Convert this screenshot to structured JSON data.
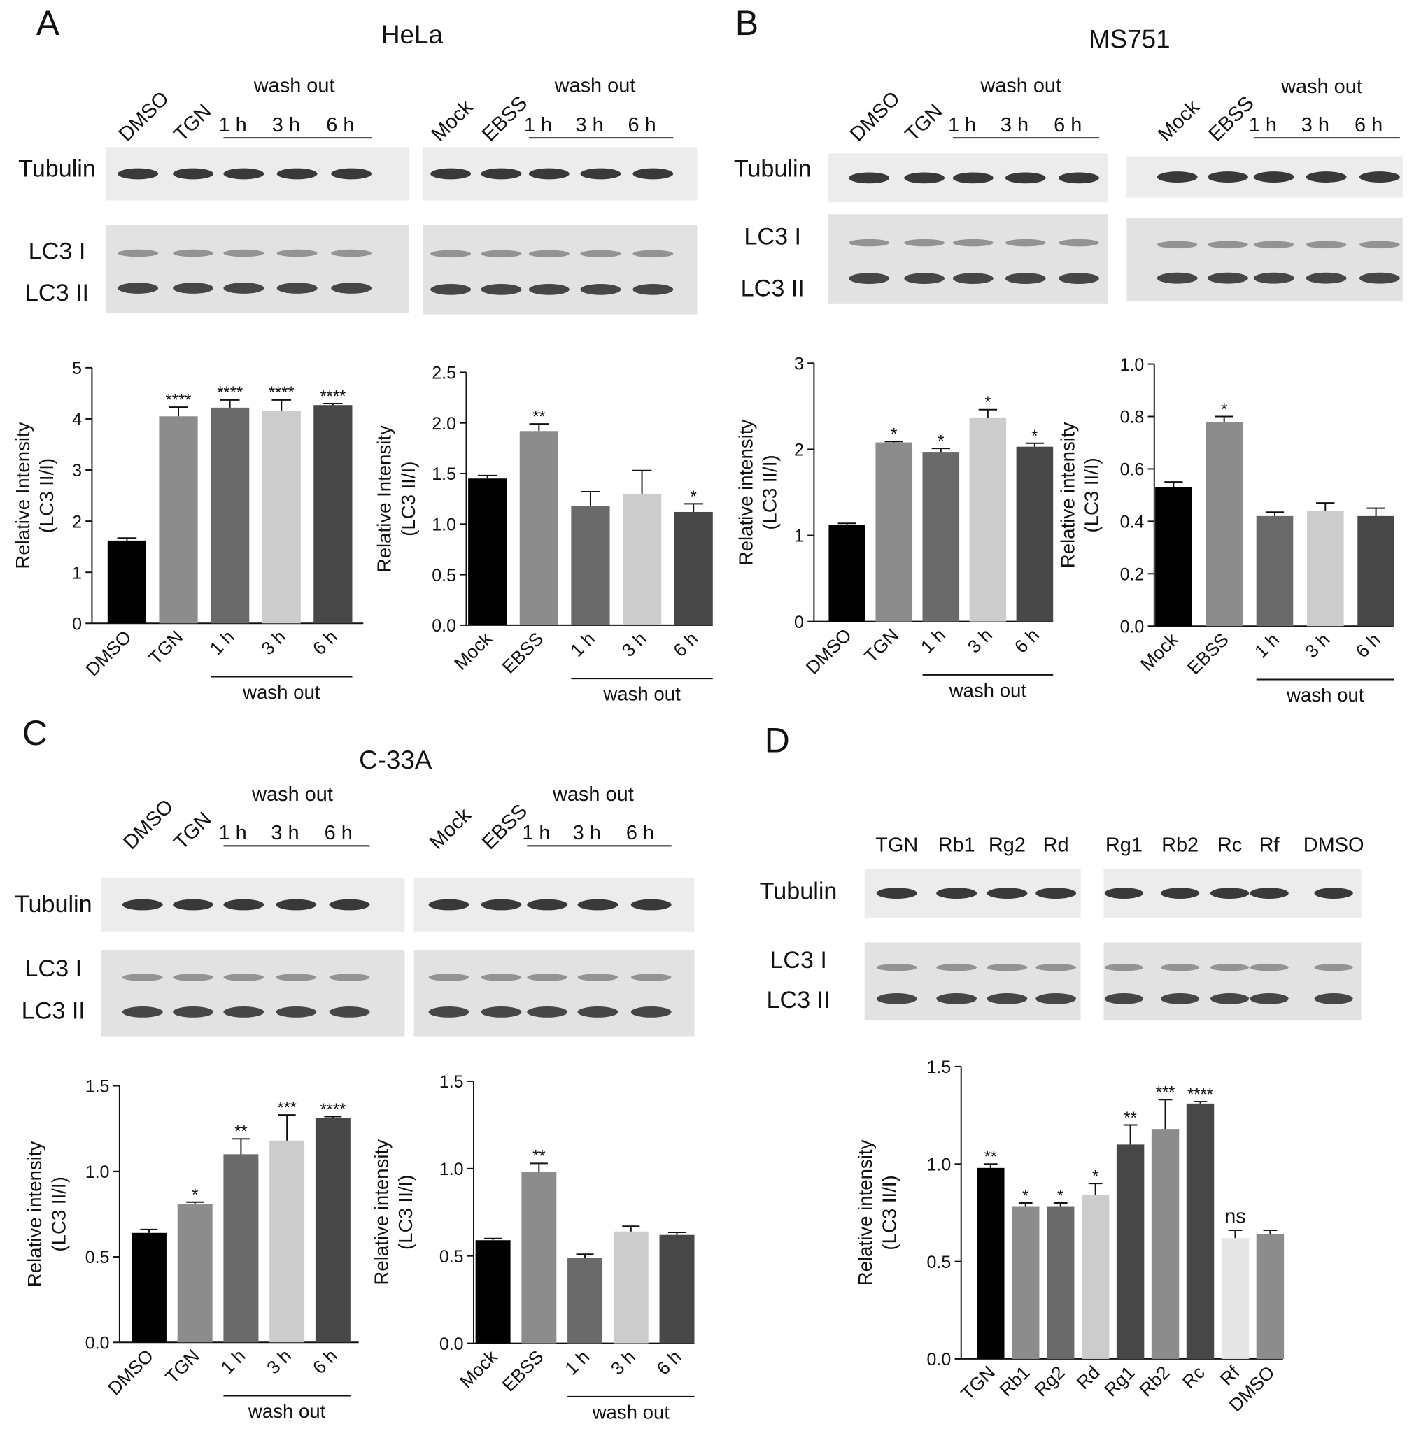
{
  "figure": {
    "panels": [
      {
        "letter": "A",
        "title": "HeLa",
        "blots": [
          {
            "header": "wash out",
            "lanes": [
              "DMSO",
              "TGN",
              "1 h",
              "3 h",
              "6 h"
            ],
            "rows": [
              "Tubulin",
              "LC3 I",
              "LC3 II"
            ]
          },
          {
            "header": "wash out",
            "lanes": [
              "Mock",
              "EBSS",
              "1 h",
              "3 h",
              "6 h"
            ]
          }
        ]
      },
      {
        "letter": "B",
        "title": "MS751",
        "blots": [
          {
            "header": "wash out",
            "lanes": [
              "DMSO",
              "TGN",
              "1 h",
              "3 h",
              "6 h"
            ],
            "rows": [
              "Tubulin",
              "LC3 I",
              "LC3 II"
            ]
          },
          {
            "header": "wash out",
            "lanes": [
              "Mock",
              "EBSS",
              "1 h",
              "3 h",
              "6 h"
            ]
          }
        ]
      },
      {
        "letter": "C",
        "title": "C-33A",
        "blots": [
          {
            "header": "wash out",
            "lanes": [
              "DMSO",
              "TGN",
              "1 h",
              "3 h",
              "6 h"
            ],
            "rows": [
              "Tubulin",
              "LC3 I",
              "LC3 II"
            ]
          },
          {
            "header": "wash out",
            "lanes": [
              "Mock",
              "EBSS",
              "1 h",
              "3 h",
              "6 h"
            ]
          }
        ]
      },
      {
        "letter": "D",
        "blots": [
          {
            "lanes": [
              "TGN",
              "Rb1",
              "Rg2",
              "Rd"
            ],
            "rows": [
              "Tubulin",
              "LC3 I",
              "LC3 II"
            ]
          },
          {
            "lanes": [
              "Rg1",
              "Rb2",
              "Rc",
              "Rf",
              "DMSO"
            ]
          }
        ]
      }
    ]
  },
  "chart_data": [
    {
      "type": "bar",
      "y_label": [
        "Relative Intensity",
        "(LC3 II/I)"
      ],
      "x_group_label": "wash out",
      "categories": [
        "DMSO",
        "TGN",
        "1 h",
        "3 h",
        "6 h"
      ],
      "values": [
        1.62,
        4.05,
        4.22,
        4.15,
        4.27
      ],
      "errors": [
        0.05,
        0.18,
        0.15,
        0.22,
        0.03
      ],
      "annotations": [
        null,
        "****",
        "****",
        "****",
        "****"
      ],
      "colors": [
        "#000000",
        "#8c8c8c",
        "#6a6a6a",
        "#cccccc",
        "#474747"
      ],
      "ylim": [
        0,
        5
      ],
      "yticks": [
        0,
        1,
        2,
        3,
        4,
        5
      ]
    },
    {
      "type": "bar",
      "y_label": [
        "Relative Intensity",
        "(LC3 II/I)"
      ],
      "x_group_label": "wash out",
      "categories": [
        "Mock",
        "EBSS",
        "1 h",
        "3 h",
        "6 h"
      ],
      "values": [
        1.45,
        1.92,
        1.18,
        1.3,
        1.12
      ],
      "errors": [
        0.03,
        0.07,
        0.14,
        0.23,
        0.08
      ],
      "annotations": [
        null,
        "**",
        null,
        null,
        "*"
      ],
      "colors": [
        "#000000",
        "#8c8c8c",
        "#6a6a6a",
        "#cccccc",
        "#474747"
      ],
      "ylim": [
        0,
        2.5
      ],
      "yticks": [
        {
          "value": 0,
          "label": "0.0"
        },
        0.5,
        {
          "value": 1,
          "label": "1.0"
        },
        1.5,
        {
          "value": 2,
          "label": "2.0"
        },
        2.5
      ]
    },
    {
      "type": "bar",
      "y_label": [
        "Relative intensity",
        "(LC3 II/I)"
      ],
      "x_group_label": "wash out",
      "categories": [
        "DMSO",
        "TGN",
        "1 h",
        "3 h",
        "6 h"
      ],
      "values": [
        1.12,
        2.08,
        1.97,
        2.37,
        2.03
      ],
      "errors": [
        0.02,
        0.01,
        0.04,
        0.09,
        0.04
      ],
      "annotations": [
        null,
        "*",
        "*",
        "*",
        "*"
      ],
      "colors": [
        "#000000",
        "#8c8c8c",
        "#6a6a6a",
        "#cccccc",
        "#474747"
      ],
      "ylim": [
        0,
        3
      ],
      "yticks": [
        0,
        1,
        2,
        3
      ]
    },
    {
      "type": "bar",
      "y_label": [
        "Relative intensity",
        "(LC3 II/I)"
      ],
      "x_group_label": "wash out",
      "categories": [
        "Mock",
        "EBSS",
        "1 h",
        "3 h",
        "6 h"
      ],
      "values": [
        0.53,
        0.78,
        0.42,
        0.44,
        0.42
      ],
      "errors": [
        0.02,
        0.02,
        0.015,
        0.03,
        0.03
      ],
      "annotations": [
        null,
        "*",
        null,
        null,
        null
      ],
      "colors": [
        "#000000",
        "#8c8c8c",
        "#6a6a6a",
        "#cccccc",
        "#474747"
      ],
      "ylim": [
        0,
        1
      ],
      "yticks": [
        {
          "value": 0,
          "label": "0.0"
        },
        0.2,
        0.4,
        0.6,
        0.8,
        {
          "value": 1,
          "label": "1.0"
        }
      ]
    },
    {
      "type": "bar",
      "y_label": [
        "Relative intensity",
        "(LC3 II/I)"
      ],
      "x_group_label": "wash out",
      "categories": [
        "DMSO",
        "TGN",
        "1 h",
        "3 h",
        "6 h"
      ],
      "values": [
        0.64,
        0.81,
        1.1,
        1.18,
        1.31
      ],
      "errors": [
        0.02,
        0.01,
        0.09,
        0.15,
        0.01
      ],
      "annotations": [
        null,
        "*",
        "**",
        "***",
        "****"
      ],
      "colors": [
        "#000000",
        "#8c8c8c",
        "#6a6a6a",
        "#cccccc",
        "#474747"
      ],
      "ylim": [
        0,
        1.5
      ],
      "yticks": [
        {
          "value": 0,
          "label": "0.0"
        },
        0.5,
        {
          "value": 1,
          "label": "1.0"
        },
        1.5
      ]
    },
    {
      "type": "bar",
      "y_label": [
        "Relative intensity",
        "(LC3 II/I)"
      ],
      "x_group_label": "wash out",
      "categories": [
        "Mock",
        "EBSS",
        "1 h",
        "3 h",
        "6 h"
      ],
      "values": [
        0.59,
        0.98,
        0.49,
        0.64,
        0.62
      ],
      "errors": [
        0.01,
        0.05,
        0.02,
        0.03,
        0.015
      ],
      "annotations": [
        null,
        "**",
        null,
        null,
        null
      ],
      "colors": [
        "#000000",
        "#8c8c8c",
        "#6a6a6a",
        "#cccccc",
        "#474747"
      ],
      "ylim": [
        0,
        1.5
      ],
      "yticks": [
        {
          "value": 0,
          "label": "0.0"
        },
        0.5,
        {
          "value": 1,
          "label": "1.0"
        },
        1.5
      ]
    },
    {
      "type": "bar",
      "y_label": [
        "Relative intensity",
        "(LC3 II/I)"
      ],
      "categories": [
        "TGN",
        "Rb1",
        "Rg2",
        "Rd",
        "Rg1",
        "Rb2",
        "Rc",
        "Rf",
        "DMSO"
      ],
      "values": [
        0.98,
        0.78,
        0.78,
        0.84,
        1.1,
        1.18,
        1.31,
        0.62,
        0.64
      ],
      "errors": [
        0.02,
        0.02,
        0.02,
        0.06,
        0.1,
        0.15,
        0.01,
        0.04,
        0.02
      ],
      "annotations": [
        "**",
        "*",
        "*",
        "*",
        "**",
        "***",
        "****",
        "ns",
        null
      ],
      "colors": [
        "#000000",
        "#8c8c8c",
        "#6a6a6a",
        "#cccccc",
        "#474747",
        "#8c8c8c",
        "#474747",
        "#e6e6e6",
        "#8c8c8c"
      ],
      "ylim": [
        0,
        1.5
      ],
      "yticks": [
        {
          "value": 0,
          "label": "0.0"
        },
        0.5,
        {
          "value": 1,
          "label": "1.0"
        },
        1.5
      ]
    }
  ]
}
